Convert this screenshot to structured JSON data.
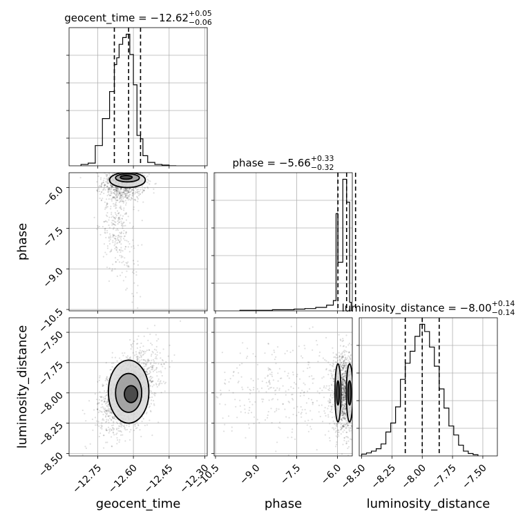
{
  "chart_data": {
    "type": "scatter",
    "kind": "corner-plot",
    "grid": true,
    "parameters": [
      {
        "name": "geocent_time",
        "axis_label": "geocent_time",
        "median": -12.62,
        "plus": "0.05",
        "minus": "0.06",
        "title_main": "geocent_time = −12.62",
        "title_sup": "+0.05",
        "title_sub": "−0.06",
        "range": [
          -12.87,
          -12.29
        ],
        "ticks": [
          -12.75,
          -12.6,
          -12.45,
          -12.3
        ],
        "tick_labels": [
          "−12.75",
          "−12.60",
          "−12.45",
          "−12.30"
        ],
        "quantiles": [
          -12.68,
          -12.62,
          -12.57
        ]
      },
      {
        "name": "phase",
        "axis_label": "phase",
        "median": -5.66,
        "plus": "0.33",
        "minus": "0.32",
        "title_main": "phase = −5.66",
        "title_sup": "+0.33",
        "title_sub": "−0.32",
        "range": [
          -10.55,
          -5.45
        ],
        "ticks": [
          -10.5,
          -9.0,
          -7.5,
          -6.0
        ],
        "tick_labels": [
          "−10.5",
          "−9.0",
          "−7.5",
          "−6.0"
        ],
        "quantiles": [
          -5.98,
          -5.66,
          -5.33
        ]
      },
      {
        "name": "luminosity_distance",
        "axis_label": "luminosity_distance",
        "median": -8.0,
        "plus": "0.14",
        "minus": "0.14",
        "title_main": "luminosity_distance = −8.00",
        "title_sup": "+0.14",
        "title_sub": "−0.14",
        "range": [
          -8.52,
          -7.38
        ],
        "ticks": [
          -8.5,
          -8.25,
          -8.0,
          -7.75,
          -7.5
        ],
        "tick_labels": [
          "−8.50",
          "−8.25",
          "−8.00",
          "−7.75",
          "−7.50"
        ],
        "quantiles": [
          -8.14,
          -8.0,
          -7.86
        ]
      }
    ],
    "row_axes": [
      {
        "param": "phase",
        "ticks": [
          -6.0,
          -7.5,
          -9.0,
          -10.5
        ],
        "tick_labels": [
          "−6.0",
          "−7.5",
          "−9.0",
          "−10.5"
        ]
      },
      {
        "param": "luminosity_distance",
        "ticks": [
          -7.5,
          -7.75,
          -8.0,
          -8.25,
          -8.5
        ],
        "tick_labels": [
          "−7.50",
          "−7.75",
          "−8.00",
          "−8.25",
          "−8.50"
        ]
      }
    ],
    "histograms": {
      "geocent_time": {
        "bin_edges": [
          -12.82,
          -12.79,
          -12.76,
          -12.73,
          -12.7,
          -12.68,
          -12.67,
          -12.66,
          -12.645,
          -12.63,
          -12.615,
          -12.6,
          -12.585,
          -12.57,
          -12.56,
          -12.54,
          -12.51,
          -12.48,
          -12.45,
          -12.42
        ],
        "counts": [
          2,
          4,
          30,
          70,
          110,
          150,
          160,
          180,
          190,
          195,
          165,
          120,
          45,
          40,
          15,
          5,
          2,
          1,
          0
        ]
      },
      "phase": {
        "bin_edges": [
          -9.6,
          -9.2,
          -8.8,
          -8.4,
          -8.0,
          -7.6,
          -7.2,
          -6.8,
          -6.4,
          -6.15,
          -6.05,
          -5.98,
          -5.8,
          -5.66,
          -5.55,
          -5.49
        ],
        "counts": [
          1,
          1,
          1,
          2,
          2,
          3,
          4,
          6,
          10,
          18,
          170,
          85,
          230,
          190,
          15
        ]
      },
      "luminosity_distance": {
        "bin_edges": [
          -8.5,
          -8.46,
          -8.42,
          -8.38,
          -8.34,
          -8.3,
          -8.26,
          -8.22,
          -8.18,
          -8.14,
          -8.1,
          -8.06,
          -8.02,
          -7.98,
          -7.94,
          -7.9,
          -7.86,
          -7.82,
          -7.78,
          -7.74,
          -7.7,
          -7.66,
          -7.62,
          -7.58,
          -7.54
        ],
        "counts": [
          3,
          5,
          8,
          12,
          20,
          40,
          55,
          82,
          128,
          155,
          175,
          200,
          220,
          208,
          182,
          150,
          112,
          80,
          50,
          35,
          18,
          8,
          4,
          2
        ]
      }
    },
    "panels_2d": [
      {
        "x": "geocent_time",
        "y": "phase",
        "clusters": [
          {
            "n": 900,
            "mx": -12.64,
            "sx": 0.045,
            "my": -5.8,
            "sy": 0.35
          },
          {
            "n": 260,
            "mx": -12.67,
            "sx": 0.03,
            "my": -7.3,
            "sy": 0.8
          },
          {
            "n": 60,
            "mx": -12.62,
            "sx": 0.04,
            "my": -9.0,
            "sy": 0.9
          }
        ],
        "contours": [
          {
            "cx": -12.625,
            "cy": -5.72,
            "rx": 0.075,
            "ry": 0.28
          },
          {
            "cx": -12.625,
            "cy": -5.64,
            "rx": 0.05,
            "ry": 0.15
          },
          {
            "cx": -12.63,
            "cy": -5.62,
            "rx": 0.025,
            "ry": 0.07
          }
        ]
      },
      {
        "x": "geocent_time",
        "y": "luminosity_distance",
        "clusters": [
          {
            "n": 1700,
            "mx": -12.62,
            "sx": 0.06,
            "my": -7.98,
            "sy": 0.16,
            "rho": 0.45
          }
        ],
        "contours": [
          {
            "cx": -12.62,
            "cy": -7.99,
            "rx": 0.085,
            "ry": 0.26
          },
          {
            "cx": -12.62,
            "cy": -8.0,
            "rx": 0.055,
            "ry": 0.16
          },
          {
            "cx": -12.61,
            "cy": -8.01,
            "rx": 0.028,
            "ry": 0.07
          }
        ]
      },
      {
        "x": "phase",
        "y": "luminosity_distance",
        "clusters": [
          {
            "n": 1300,
            "mx": -5.75,
            "sx": 0.22,
            "my": -8.0,
            "sy": 0.16
          },
          {
            "n": 320,
            "mx": -8.0,
            "sx": 1.4,
            "my": -7.97,
            "sy": 0.2
          }
        ],
        "contours": [
          {
            "cx": -5.98,
            "cy": -8.0,
            "rx": 0.11,
            "ry": 0.24
          },
          {
            "cx": -5.98,
            "cy": -8.0,
            "rx": 0.05,
            "ry": 0.1
          },
          {
            "cx": -5.55,
            "cy": -8.0,
            "rx": 0.12,
            "ry": 0.24
          },
          {
            "cx": -5.55,
            "cy": -8.0,
            "rx": 0.06,
            "ry": 0.1
          }
        ]
      }
    ]
  }
}
